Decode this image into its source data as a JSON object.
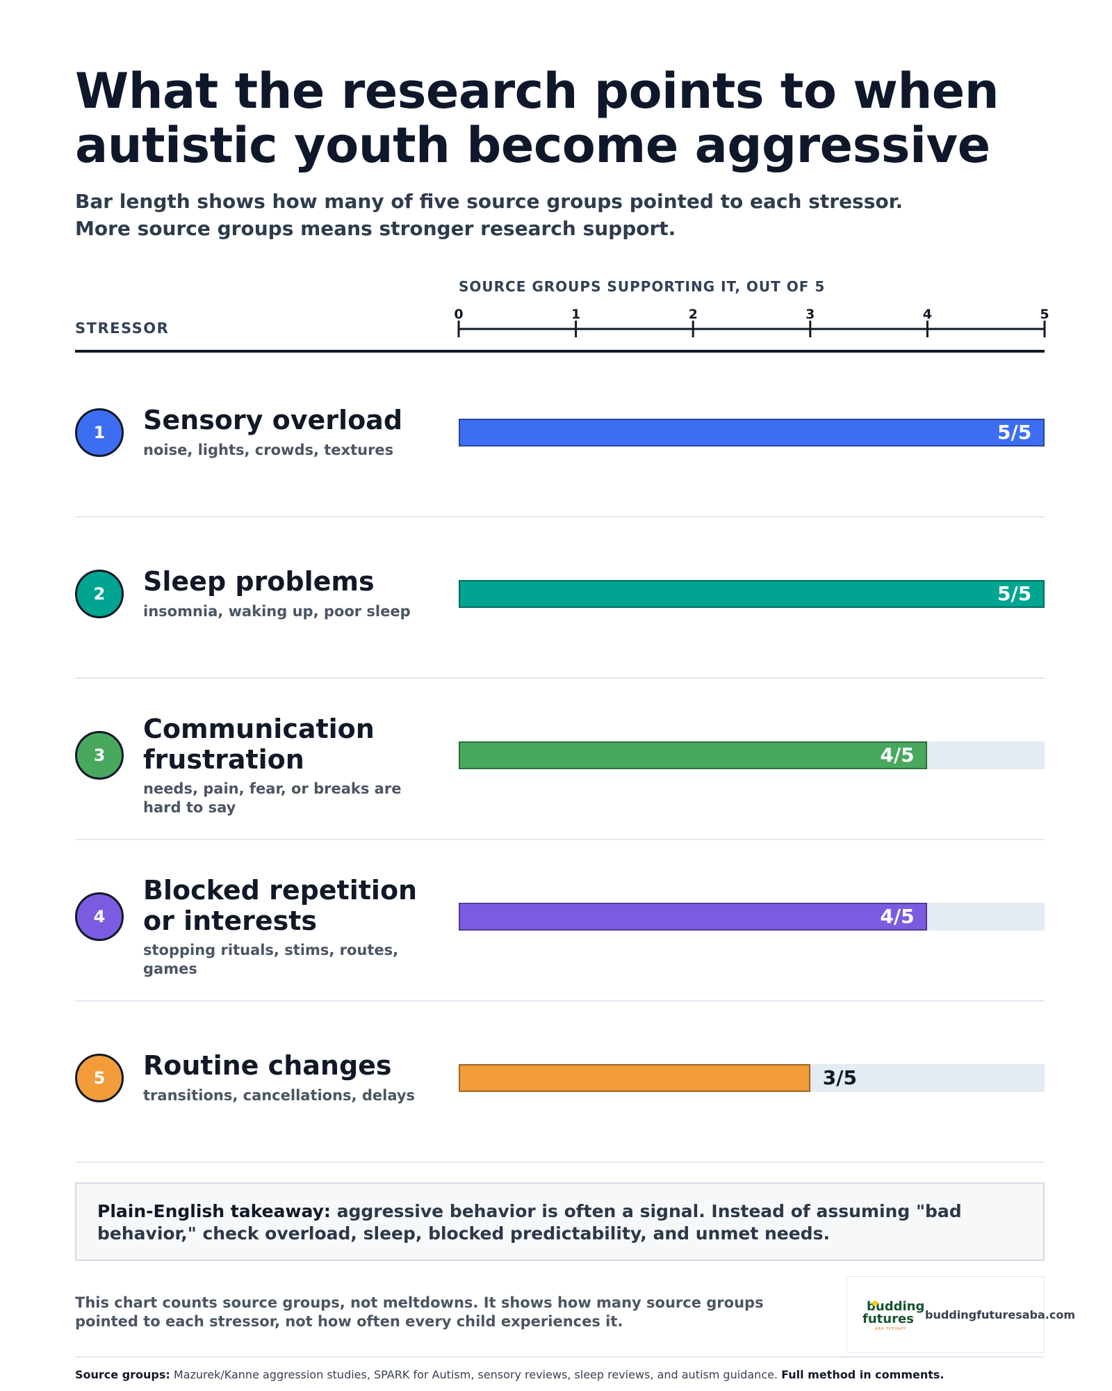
{
  "header": {
    "title": "What the research points to when autistic youth become aggressive",
    "subtitle": "Bar length shows how many of five source groups pointed to each stressor. More source groups means stronger research support."
  },
  "table": {
    "stressor_heading": "STRESSOR",
    "axis_title": "SOURCE GROUPS SUPPORTING IT, OUT OF 5"
  },
  "chart_data": {
    "type": "bar",
    "orientation": "horizontal",
    "xlim": [
      0,
      5
    ],
    "ticks": [
      "0",
      "1",
      "2",
      "3",
      "4",
      "5"
    ],
    "grid": false,
    "legend": "none",
    "rows": [
      {
        "rank": "1",
        "label": "Sensory overload",
        "sub": "noise, lights, crowds, textures",
        "value": 5,
        "value_label": "5/5",
        "color": "#3d6ef2"
      },
      {
        "rank": "2",
        "label": "Sleep problems",
        "sub": "insomnia, waking up, poor sleep",
        "value": 5,
        "value_label": "5/5",
        "color": "#00a592"
      },
      {
        "rank": "3",
        "label": "Communication frustration",
        "sub": "needs, pain, fear, or breaks are hard to say",
        "value": 4,
        "value_label": "4/5",
        "color": "#47a85e"
      },
      {
        "rank": "4",
        "label": "Blocked repetition or interests",
        "sub": "stopping rituals, stims, routes, games",
        "value": 4,
        "value_label": "4/5",
        "color": "#7b5ce1"
      },
      {
        "rank": "5",
        "label": "Routine changes",
        "sub": "transitions, cancellations, delays",
        "value": 3,
        "value_label": "3/5",
        "color": "#f29c3a"
      }
    ],
    "track_color": "#e5ebf3"
  },
  "takeaway": {
    "lead": "Plain-English takeaway:",
    "text": " aggressive behavior is often a signal. Instead of assuming \"bad behavior,\" check overload, sleep, blocked predictability, and unmet needs."
  },
  "footnote": "This chart counts source groups, not meltdowns. It shows how many source groups pointed to each stressor, not how often every child experiences it.",
  "logo": {
    "word1": "budding",
    "word2": "futures",
    "tag": "ABA THERAPY",
    "url": "buddingfuturesaba.com"
  },
  "sources": {
    "lead": "Source groups:",
    "text": " Mazurek/Kanne aggression studies, SPARK for Autism, sensory reviews, sleep reviews, and autism guidance. ",
    "method": "Full method in comments."
  }
}
